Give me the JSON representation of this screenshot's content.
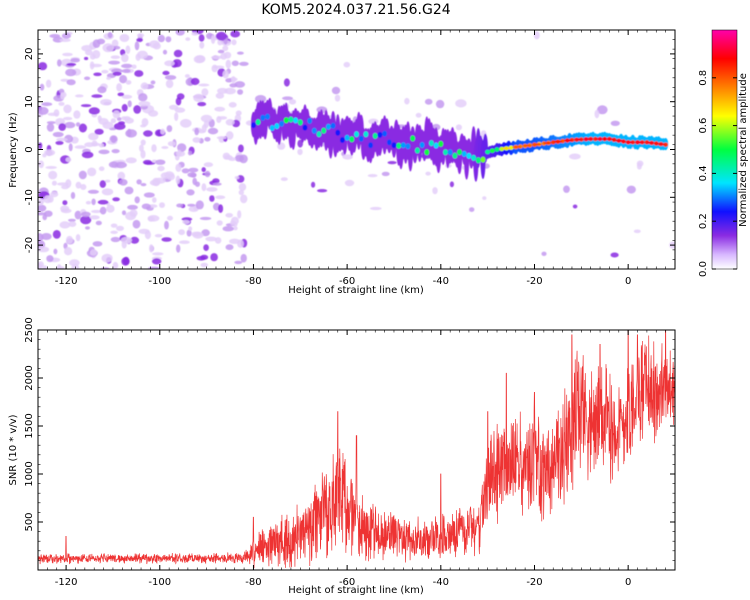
{
  "title": "KOM5.2024.037.21.56.G24",
  "colors": {
    "snr_line": "#ee3333",
    "scatter_base": "#8a2be2"
  },
  "chart_data": [
    {
      "type": "heatmap",
      "name": "spectrogram",
      "xlabel": "Height of straight line (km)",
      "ylabel": "Frequency (Hz)",
      "xlim": [
        -126,
        10
      ],
      "ylim": [
        -25,
        25
      ],
      "x_ticks": [
        -120,
        -100,
        -80,
        -60,
        -40,
        -20,
        0
      ],
      "y_ticks": [
        -20,
        -10,
        0,
        10,
        20
      ],
      "colorbar": {
        "label": "Normalized spectral amplitude",
        "range": [
          0,
          1
        ],
        "ticks": [
          0.0,
          0.2,
          0.4,
          0.6,
          0.8
        ],
        "colormap": "hsv-rainbow"
      },
      "ridge": {
        "x": [
          -80,
          -76,
          -72,
          -68,
          -64,
          -60,
          -56,
          -52,
          -48,
          -44,
          -40,
          -36,
          -32,
          -28,
          -24,
          -20,
          -16,
          -12,
          -8,
          -4,
          0,
          4,
          8
        ],
        "freq": [
          6,
          6,
          5.5,
          4.5,
          4,
          3,
          2.5,
          2,
          1.5,
          1,
          0.5,
          0,
          -1,
          0,
          0.5,
          1,
          1.5,
          2,
          2.2,
          2.2,
          1.5,
          1.5,
          1
        ],
        "amplitude": [
          0.25,
          0.3,
          0.3,
          0.3,
          0.3,
          0.28,
          0.3,
          0.3,
          0.3,
          0.3,
          0.3,
          0.3,
          0.45,
          0.55,
          0.8,
          0.8,
          0.85,
          0.9,
          0.95,
          0.95,
          0.95,
          0.95,
          0.95
        ]
      }
    },
    {
      "type": "line",
      "name": "snr",
      "xlabel": "Height of straight line (km)",
      "ylabel": "SNR (10 * v/v)",
      "xlim": [
        -126,
        10
      ],
      "ylim": [
        0,
        2500
      ],
      "x_ticks": [
        -120,
        -100,
        -80,
        -60,
        -40,
        -20,
        0
      ],
      "y_ticks": [
        500,
        1000,
        1500,
        2000,
        2500
      ],
      "envelope": {
        "x": [
          -126,
          -120,
          -110,
          -100,
          -90,
          -82,
          -80,
          -76,
          -72,
          -68,
          -64,
          -62,
          -60,
          -58,
          -56,
          -52,
          -48,
          -44,
          -40,
          -36,
          -32,
          -30,
          -28,
          -26,
          -24,
          -22,
          -20,
          -18,
          -16,
          -14,
          -12,
          -10,
          -8,
          -6,
          -4,
          -2,
          0,
          2,
          4,
          6,
          8,
          10
        ],
        "mean": [
          120,
          120,
          120,
          120,
          120,
          130,
          200,
          260,
          350,
          450,
          600,
          800,
          700,
          500,
          400,
          350,
          350,
          300,
          350,
          400,
          450,
          900,
          1050,
          1000,
          1100,
          1050,
          1100,
          1000,
          1000,
          1200,
          1400,
          1800,
          1500,
          1600,
          1550,
          1450,
          1650,
          1850,
          1950,
          1800,
          1900,
          1800
        ],
        "spread": [
          60,
          60,
          60,
          60,
          60,
          70,
          200,
          280,
          350,
          450,
          550,
          700,
          600,
          450,
          350,
          300,
          300,
          250,
          300,
          300,
          350,
          550,
          600,
          500,
          600,
          600,
          650,
          550,
          550,
          700,
          800,
          750,
          700,
          650,
          700,
          650,
          750,
          650,
          600,
          600,
          650,
          450
        ],
        "peak_at_x": [
          -120,
          -80,
          -62,
          -58,
          -40,
          -30,
          -26,
          -20,
          -12,
          -6,
          0,
          2,
          8
        ],
        "peak_value": [
          350,
          550,
          1650,
          1400,
          1000,
          1650,
          2050,
          1850,
          2450,
          2350,
          2500,
          2450,
          2500
        ]
      }
    }
  ]
}
